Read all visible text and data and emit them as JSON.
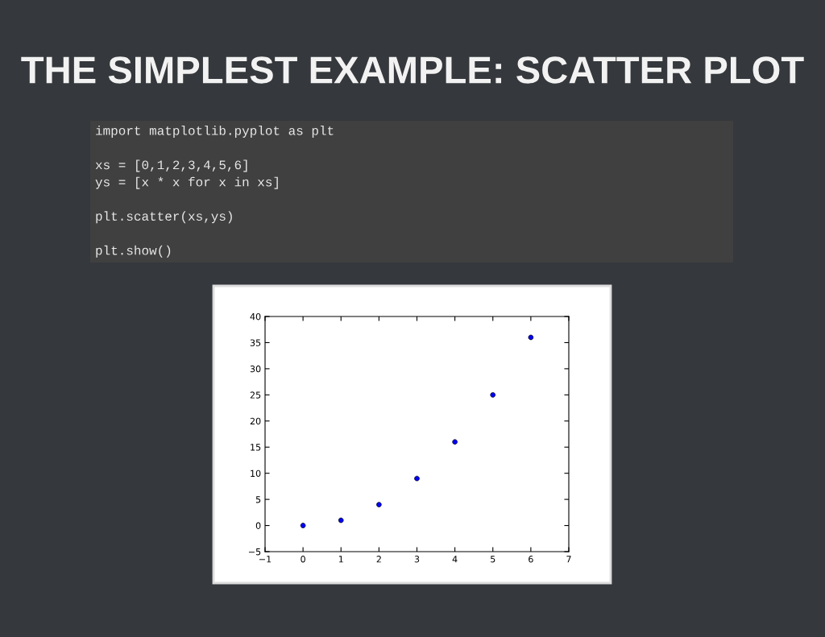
{
  "chart_data": {
    "type": "scatter",
    "title": "THE SIMPLEST EXAMPLE: SCATTER PLOT",
    "annotations": [
      "import matplotlib.pyplot as plt\n\nxs = [0,1,2,3,4,5,6]\nys = [x * x for x in xs]\n\nplt.scatter(xs,ys)\n\nplt.show()"
    ],
    "x": [
      0,
      1,
      2,
      3,
      4,
      5,
      6
    ],
    "series": [
      {
        "color": "#0000ff",
        "values": [
          0,
          1,
          4,
          9,
          16,
          25,
          36
        ]
      }
    ],
    "xlim": [
      -1,
      7
    ],
    "xticks": [
      {
        "value": -1,
        "label": "−1"
      },
      0,
      1,
      2,
      3,
      4,
      5,
      6,
      7
    ],
    "ylim": [
      -5,
      40
    ],
    "yticks": [
      {
        "value": -5,
        "label": "−5"
      },
      0,
      5,
      10,
      15,
      20,
      25,
      30,
      35,
      40
    ],
    "marker": "circle",
    "grid": false,
    "legend": false
  }
}
